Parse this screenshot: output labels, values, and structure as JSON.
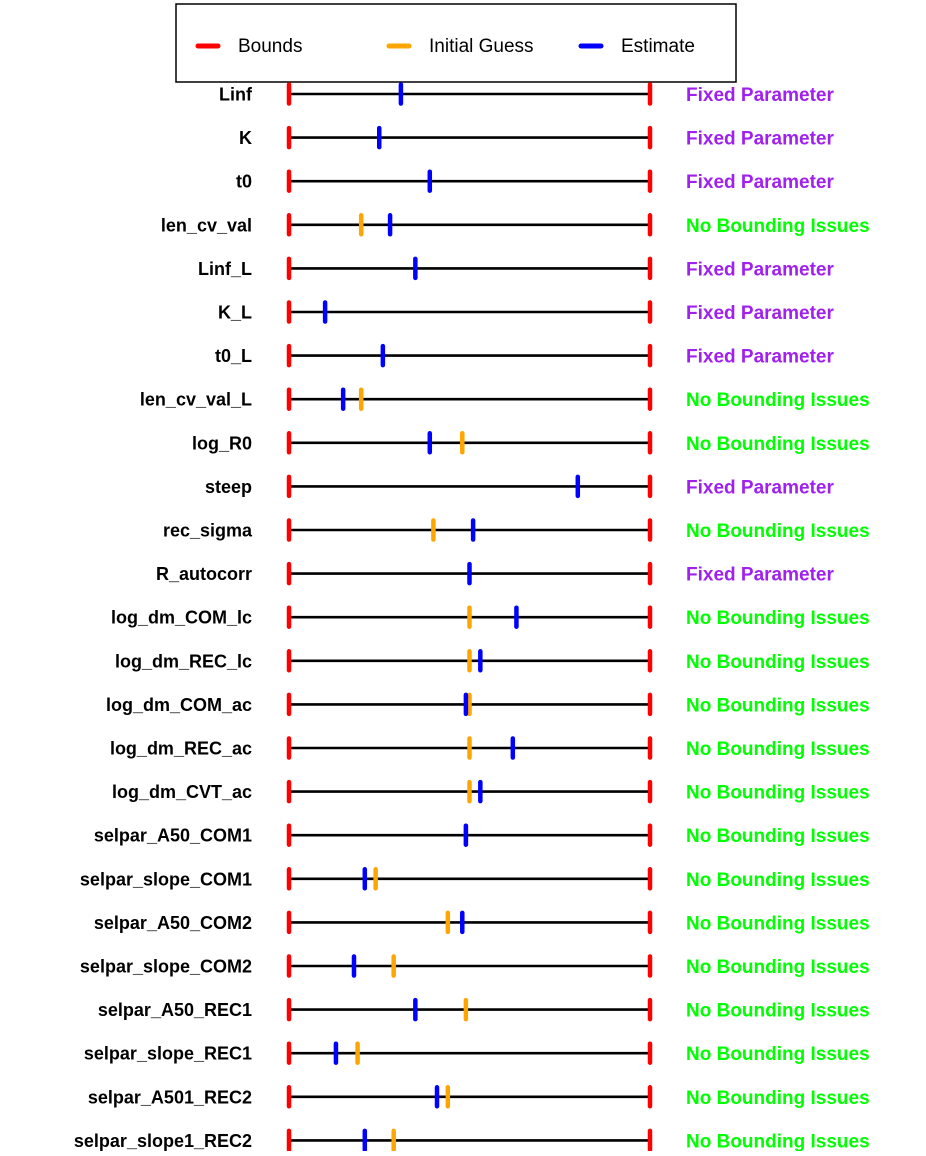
{
  "chart_data": {
    "type": "bounds-plot",
    "title": "",
    "xlabel": "",
    "ylabel": "",
    "xlim": [
      0,
      1
    ],
    "legend": {
      "placement": "top",
      "entries": [
        {
          "label": "Bounds",
          "color": "#ff0000"
        },
        {
          "label": "Initial Guess",
          "color": "#ffa500"
        },
        {
          "label": "Estimate",
          "color": "#0000ff"
        }
      ]
    },
    "colors": {
      "bounds": "#ff0000",
      "initial_guess": "#ffa500",
      "estimate": "#0000ff",
      "line": "#000000",
      "fixed": "#a020f0",
      "no_issues": "#00ff00"
    },
    "parameters": [
      {
        "name": "Linf",
        "initial": null,
        "estimate": 0.31,
        "status": "Fixed Parameter",
        "status_type": "fixed"
      },
      {
        "name": "K",
        "initial": null,
        "estimate": 0.25,
        "status": "Fixed Parameter",
        "status_type": "fixed"
      },
      {
        "name": "t0",
        "initial": null,
        "estimate": 0.39,
        "status": "Fixed Parameter",
        "status_type": "fixed"
      },
      {
        "name": "len_cv_val",
        "initial": 0.2,
        "estimate": 0.28,
        "status": "No Bounding Issues",
        "status_type": "ok"
      },
      {
        "name": "Linf_L",
        "initial": null,
        "estimate": 0.35,
        "status": "Fixed Parameter",
        "status_type": "fixed"
      },
      {
        "name": "K_L",
        "initial": null,
        "estimate": 0.1,
        "status": "Fixed Parameter",
        "status_type": "fixed"
      },
      {
        "name": "t0_L",
        "initial": null,
        "estimate": 0.26,
        "status": "Fixed Parameter",
        "status_type": "fixed"
      },
      {
        "name": "len_cv_val_L",
        "initial": 0.2,
        "estimate": 0.15,
        "status": "No Bounding Issues",
        "status_type": "ok"
      },
      {
        "name": "log_R0",
        "initial": 0.48,
        "estimate": 0.39,
        "status": "No Bounding Issues",
        "status_type": "ok"
      },
      {
        "name": "steep",
        "initial": null,
        "estimate": 0.8,
        "status": "Fixed Parameter",
        "status_type": "fixed"
      },
      {
        "name": "rec_sigma",
        "initial": 0.4,
        "estimate": 0.51,
        "status": "No Bounding Issues",
        "status_type": "ok"
      },
      {
        "name": "R_autocorr",
        "initial": null,
        "estimate": 0.5,
        "status": "Fixed Parameter",
        "status_type": "fixed"
      },
      {
        "name": "log_dm_COM_lc",
        "initial": 0.5,
        "estimate": 0.63,
        "status": "No Bounding Issues",
        "status_type": "ok"
      },
      {
        "name": "log_dm_REC_lc",
        "initial": 0.5,
        "estimate": 0.53,
        "status": "No Bounding Issues",
        "status_type": "ok"
      },
      {
        "name": "log_dm_COM_ac",
        "initial": 0.5,
        "estimate": 0.49,
        "status": "No Bounding Issues",
        "status_type": "ok"
      },
      {
        "name": "log_dm_REC_ac",
        "initial": 0.5,
        "estimate": 0.62,
        "status": "No Bounding Issues",
        "status_type": "ok"
      },
      {
        "name": "log_dm_CVT_ac",
        "initial": 0.5,
        "estimate": 0.53,
        "status": "No Bounding Issues",
        "status_type": "ok"
      },
      {
        "name": "selpar_A50_COM1",
        "initial": 0.49,
        "estimate": 0.49,
        "status": "No Bounding Issues",
        "status_type": "ok"
      },
      {
        "name": "selpar_slope_COM1",
        "initial": 0.24,
        "estimate": 0.21,
        "status": "No Bounding Issues",
        "status_type": "ok"
      },
      {
        "name": "selpar_A50_COM2",
        "initial": 0.44,
        "estimate": 0.48,
        "status": "No Bounding Issues",
        "status_type": "ok"
      },
      {
        "name": "selpar_slope_COM2",
        "initial": 0.29,
        "estimate": 0.18,
        "status": "No Bounding Issues",
        "status_type": "ok"
      },
      {
        "name": "selpar_A50_REC1",
        "initial": 0.49,
        "estimate": 0.35,
        "status": "No Bounding Issues",
        "status_type": "ok"
      },
      {
        "name": "selpar_slope_REC1",
        "initial": 0.19,
        "estimate": 0.13,
        "status": "No Bounding Issues",
        "status_type": "ok"
      },
      {
        "name": "selpar_A501_REC2",
        "initial": 0.44,
        "estimate": 0.41,
        "status": "No Bounding Issues",
        "status_type": "ok"
      },
      {
        "name": "selpar_slope1_REC2",
        "initial": 0.29,
        "estimate": 0.21,
        "status": "No Bounding Issues",
        "status_type": "ok"
      }
    ]
  }
}
